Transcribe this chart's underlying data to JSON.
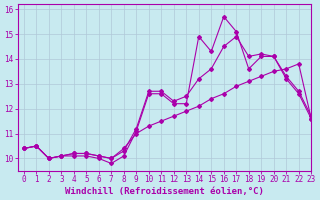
{
  "xlabel": "Windchill (Refroidissement éolien,°C)",
  "bg_color": "#c8eaf0",
  "line_color": "#aa00aa",
  "xlim": [
    -0.5,
    23
  ],
  "ylim": [
    9.5,
    16.2
  ],
  "yticks": [
    10,
    11,
    12,
    13,
    14,
    15,
    16
  ],
  "xticks": [
    0,
    1,
    2,
    3,
    4,
    5,
    6,
    7,
    8,
    9,
    10,
    11,
    12,
    13,
    14,
    15,
    16,
    17,
    18,
    19,
    20,
    21,
    22,
    23
  ],
  "line1_x": [
    0,
    1,
    2,
    3,
    4,
    5,
    6,
    7,
    8,
    9,
    10,
    11,
    12,
    13,
    14,
    15,
    16,
    17,
    18,
    19,
    20,
    21,
    22,
    23
  ],
  "line1_y": [
    10.4,
    10.5,
    10.0,
    10.1,
    10.1,
    10.1,
    10.0,
    9.8,
    10.1,
    11.1,
    12.6,
    12.6,
    12.2,
    12.2,
    14.9,
    14.3,
    15.7,
    15.1,
    13.6,
    14.1,
    14.1,
    13.2,
    12.6,
    11.6
  ],
  "line2_x": [
    0,
    1,
    2,
    3,
    4,
    5,
    6,
    7,
    8,
    9,
    10,
    11,
    12,
    13,
    14,
    15,
    16,
    17,
    18,
    19,
    20,
    21,
    22,
    23
  ],
  "line2_y": [
    10.4,
    10.5,
    10.0,
    10.1,
    10.2,
    10.2,
    10.1,
    10.0,
    10.3,
    11.2,
    12.7,
    12.7,
    12.3,
    12.5,
    13.2,
    13.6,
    14.5,
    14.9,
    14.1,
    14.2,
    14.1,
    13.3,
    12.7,
    11.7
  ],
  "line3_x": [
    0,
    1,
    2,
    3,
    4,
    5,
    6,
    7,
    8,
    9,
    10,
    11,
    12,
    13,
    14,
    15,
    16,
    17,
    18,
    19,
    20,
    21,
    22,
    23
  ],
  "line3_y": [
    10.4,
    10.5,
    10.0,
    10.1,
    10.2,
    10.2,
    10.1,
    10.0,
    10.4,
    11.0,
    11.3,
    11.5,
    11.7,
    11.9,
    12.1,
    12.4,
    12.6,
    12.9,
    13.1,
    13.3,
    13.5,
    13.6,
    13.8,
    11.6
  ],
  "grid_color": "#b0c8d8",
  "marker": "D",
  "markersize": 2.0,
  "linewidth": 0.8,
  "tick_fontsize": 5.5,
  "xlabel_fontsize": 6.5
}
